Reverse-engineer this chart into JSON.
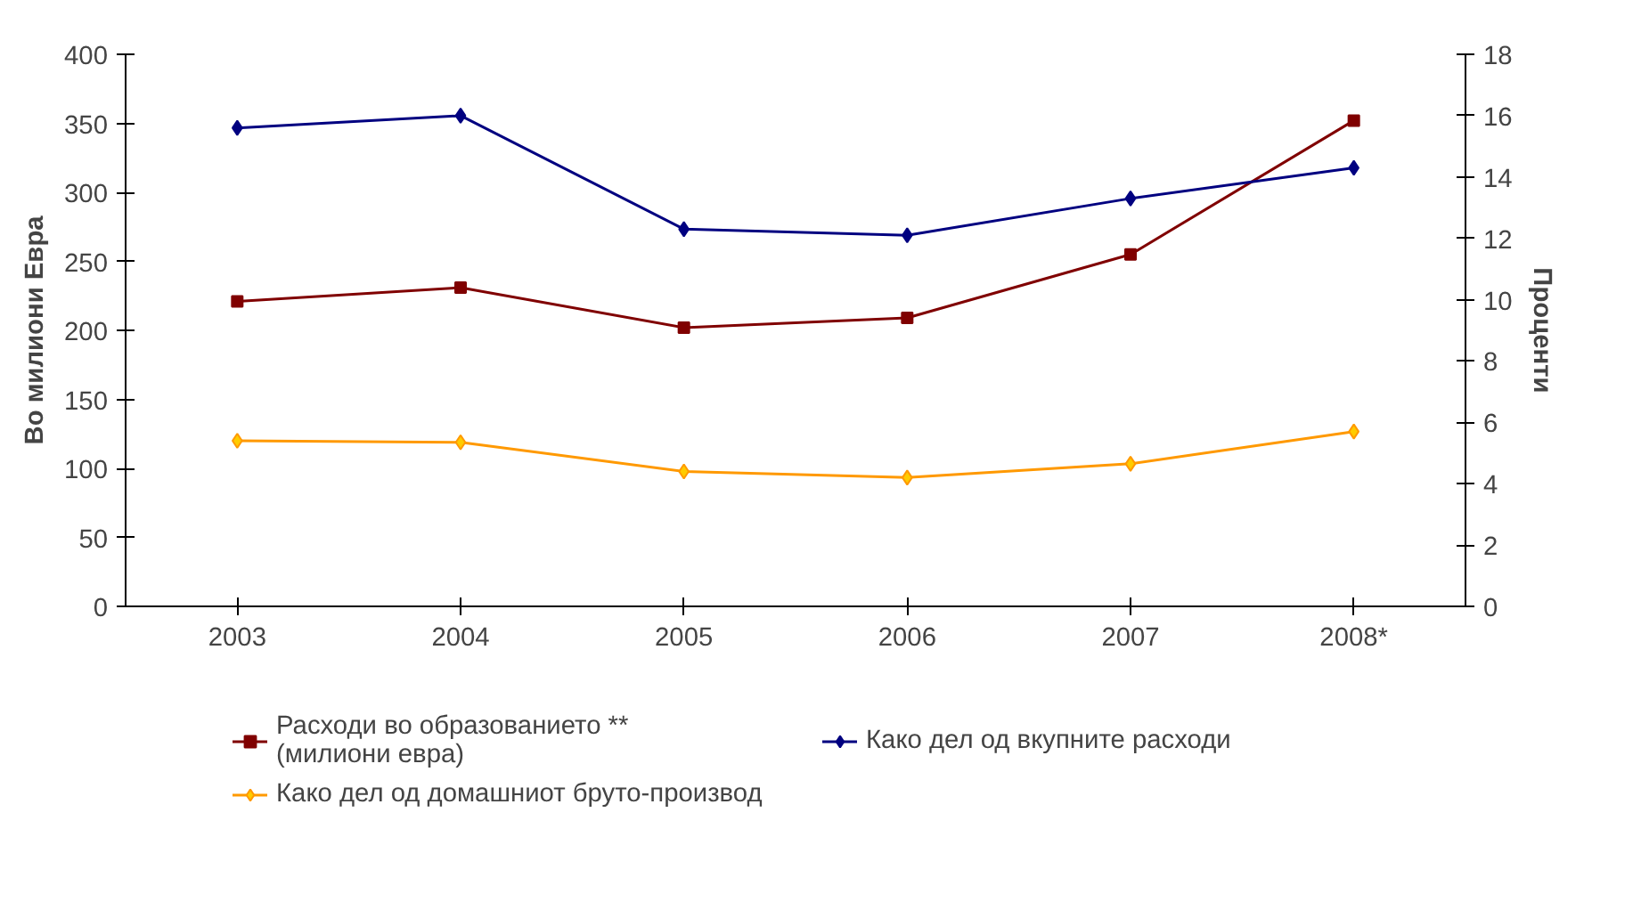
{
  "chart_data": {
    "type": "line",
    "ylabel": "Во милиони Евра",
    "y2label": "Проценти",
    "categories": [
      "2003",
      "2004",
      "2005",
      "2006",
      "2007",
      "2008*"
    ],
    "ylim": [
      0,
      400
    ],
    "yticks": [
      0,
      50,
      100,
      150,
      200,
      250,
      300,
      350,
      400
    ],
    "y2lim": [
      0,
      18
    ],
    "y2ticks": [
      0,
      2,
      4,
      6,
      8,
      10,
      12,
      14,
      16,
      18
    ],
    "grid": false,
    "legend": "bottom",
    "series": [
      {
        "name": "Расходи во образованието **\n(милиони евра)",
        "color": "#800000",
        "marker": "square",
        "values": [
          221,
          231,
          202,
          209,
          255,
          352
        ]
      },
      {
        "name": "Како дел од вкупните расходи",
        "color": "#000080",
        "marker": "diamond",
        "axis": "y2",
        "values": [
          15.6,
          16.0,
          12.3,
          12.1,
          13.3,
          14.3
        ]
      },
      {
        "name": "Како дел од домашниот бруто-производ",
        "color": "#ff9900",
        "marker": "diamond",
        "axis": "y2",
        "values": [
          5.4,
          5.35,
          4.4,
          4.2,
          4.65,
          5.7
        ]
      }
    ]
  }
}
